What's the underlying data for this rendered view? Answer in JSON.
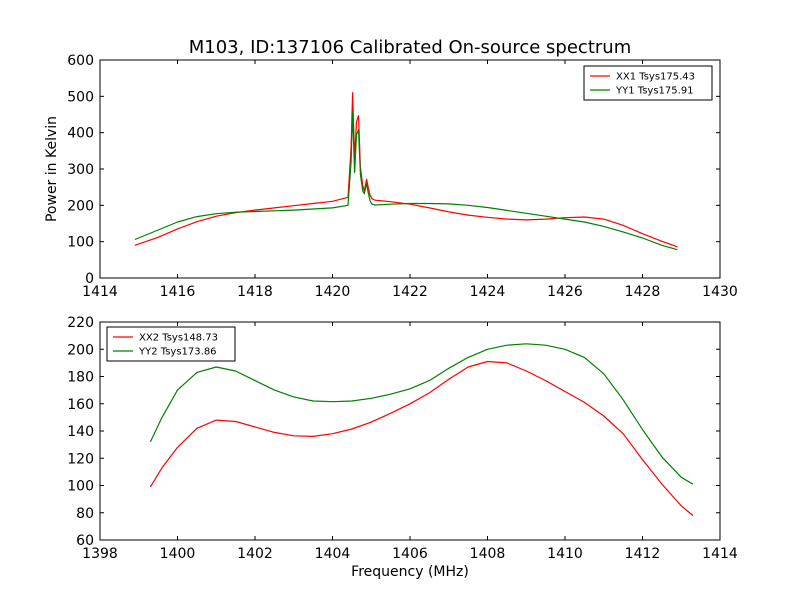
{
  "title": "M103, ID:137106 Calibrated On-source spectrum",
  "chart_data": [
    {
      "type": "line",
      "ylabel": "Power in Kelvin",
      "xlabel": "",
      "xlim": [
        1414,
        1430
      ],
      "ylim": [
        0,
        600
      ],
      "xticks": [
        1414,
        1416,
        1418,
        1420,
        1422,
        1424,
        1426,
        1428,
        1430
      ],
      "yticks": [
        0,
        100,
        200,
        300,
        400,
        500,
        600
      ],
      "legend_position": "top-right",
      "series": [
        {
          "name": "XX1 Tsys175.43",
          "color": "#ff0000",
          "x": [
            1414.9,
            1415.5,
            1416,
            1416.5,
            1417,
            1417.5,
            1418,
            1418.5,
            1419,
            1419.5,
            1420,
            1420.4,
            1420.48,
            1420.52,
            1420.57,
            1420.62,
            1420.67,
            1420.72,
            1420.78,
            1420.82,
            1420.88,
            1420.92,
            1420.97,
            1421.02,
            1421.1,
            1421.5,
            1422,
            1422.5,
            1423,
            1423.5,
            1424,
            1424.5,
            1425,
            1425.5,
            1426,
            1426.5,
            1427,
            1427.5,
            1428,
            1428.5,
            1428.9
          ],
          "y": [
            90,
            112,
            135,
            155,
            170,
            180,
            187,
            193,
            199,
            205,
            211,
            222,
            360,
            510,
            330,
            430,
            447,
            305,
            255,
            240,
            272,
            250,
            228,
            218,
            214,
            210,
            203,
            193,
            182,
            173,
            167,
            162,
            160,
            162,
            166,
            168,
            162,
            145,
            122,
            101,
            86
          ]
        },
        {
          "name": "YY1 Tsys175.91",
          "color": "#008000",
          "x": [
            1414.9,
            1415.5,
            1416,
            1416.5,
            1417,
            1417.5,
            1418,
            1418.5,
            1419,
            1419.5,
            1420,
            1420.4,
            1420.48,
            1420.52,
            1420.57,
            1420.62,
            1420.67,
            1420.72,
            1420.78,
            1420.82,
            1420.88,
            1420.92,
            1420.97,
            1421.02,
            1421.1,
            1421.5,
            1422,
            1422.5,
            1423,
            1423.5,
            1424,
            1424.5,
            1425,
            1425.5,
            1426,
            1426.5,
            1427,
            1427.5,
            1428,
            1428.5,
            1428.9
          ],
          "y": [
            106,
            132,
            154,
            169,
            177,
            181,
            183,
            185,
            187,
            190,
            193,
            200,
            320,
            458,
            290,
            395,
            408,
            285,
            240,
            232,
            260,
            235,
            212,
            203,
            201,
            203,
            205,
            205,
            204,
            200,
            194,
            186,
            178,
            170,
            162,
            154,
            142,
            127,
            110,
            90,
            78
          ]
        }
      ]
    },
    {
      "type": "line",
      "xlabel": "Frequency (MHz)",
      "ylabel": "",
      "xlim": [
        1398,
        1414
      ],
      "ylim": [
        60,
        220
      ],
      "xticks": [
        1398,
        1400,
        1402,
        1404,
        1406,
        1408,
        1410,
        1412,
        1414
      ],
      "yticks": [
        60,
        80,
        100,
        120,
        140,
        160,
        180,
        200,
        220
      ],
      "legend_position": "top-left",
      "series": [
        {
          "name": "XX2 Tsys148.73",
          "color": "#ff0000",
          "x": [
            1399.3,
            1399.6,
            1400,
            1400.5,
            1401,
            1401.5,
            1402,
            1402.5,
            1403,
            1403.5,
            1404,
            1404.5,
            1405,
            1405.5,
            1406,
            1406.5,
            1407,
            1407.5,
            1408,
            1408.5,
            1409,
            1409.5,
            1410,
            1410.5,
            1411,
            1411.5,
            1412,
            1412.5,
            1413,
            1413.3
          ],
          "y": [
            99,
            113,
            128,
            142,
            148,
            147,
            143,
            139,
            136.5,
            136,
            138,
            141.5,
            146.5,
            153,
            160,
            168,
            178,
            187,
            191,
            190,
            184,
            177,
            169,
            161,
            151,
            138,
            119,
            101,
            85,
            78
          ]
        },
        {
          "name": "YY2 Tsys173.86",
          "color": "#008000",
          "x": [
            1399.3,
            1399.6,
            1400,
            1400.5,
            1401,
            1401.5,
            1402,
            1402.5,
            1403,
            1403.5,
            1404,
            1404.5,
            1405,
            1405.5,
            1406,
            1406.5,
            1407,
            1407.5,
            1408,
            1408.5,
            1409,
            1409.5,
            1410,
            1410.5,
            1411,
            1411.5,
            1412,
            1412.5,
            1413,
            1413.3
          ],
          "y": [
            132,
            150,
            170,
            183,
            187,
            184,
            177,
            170,
            165,
            162,
            161.5,
            162,
            164,
            167,
            171,
            177,
            186,
            194,
            200,
            203,
            204,
            203,
            200,
            194,
            182,
            163,
            141,
            121,
            106,
            101
          ]
        }
      ]
    }
  ]
}
